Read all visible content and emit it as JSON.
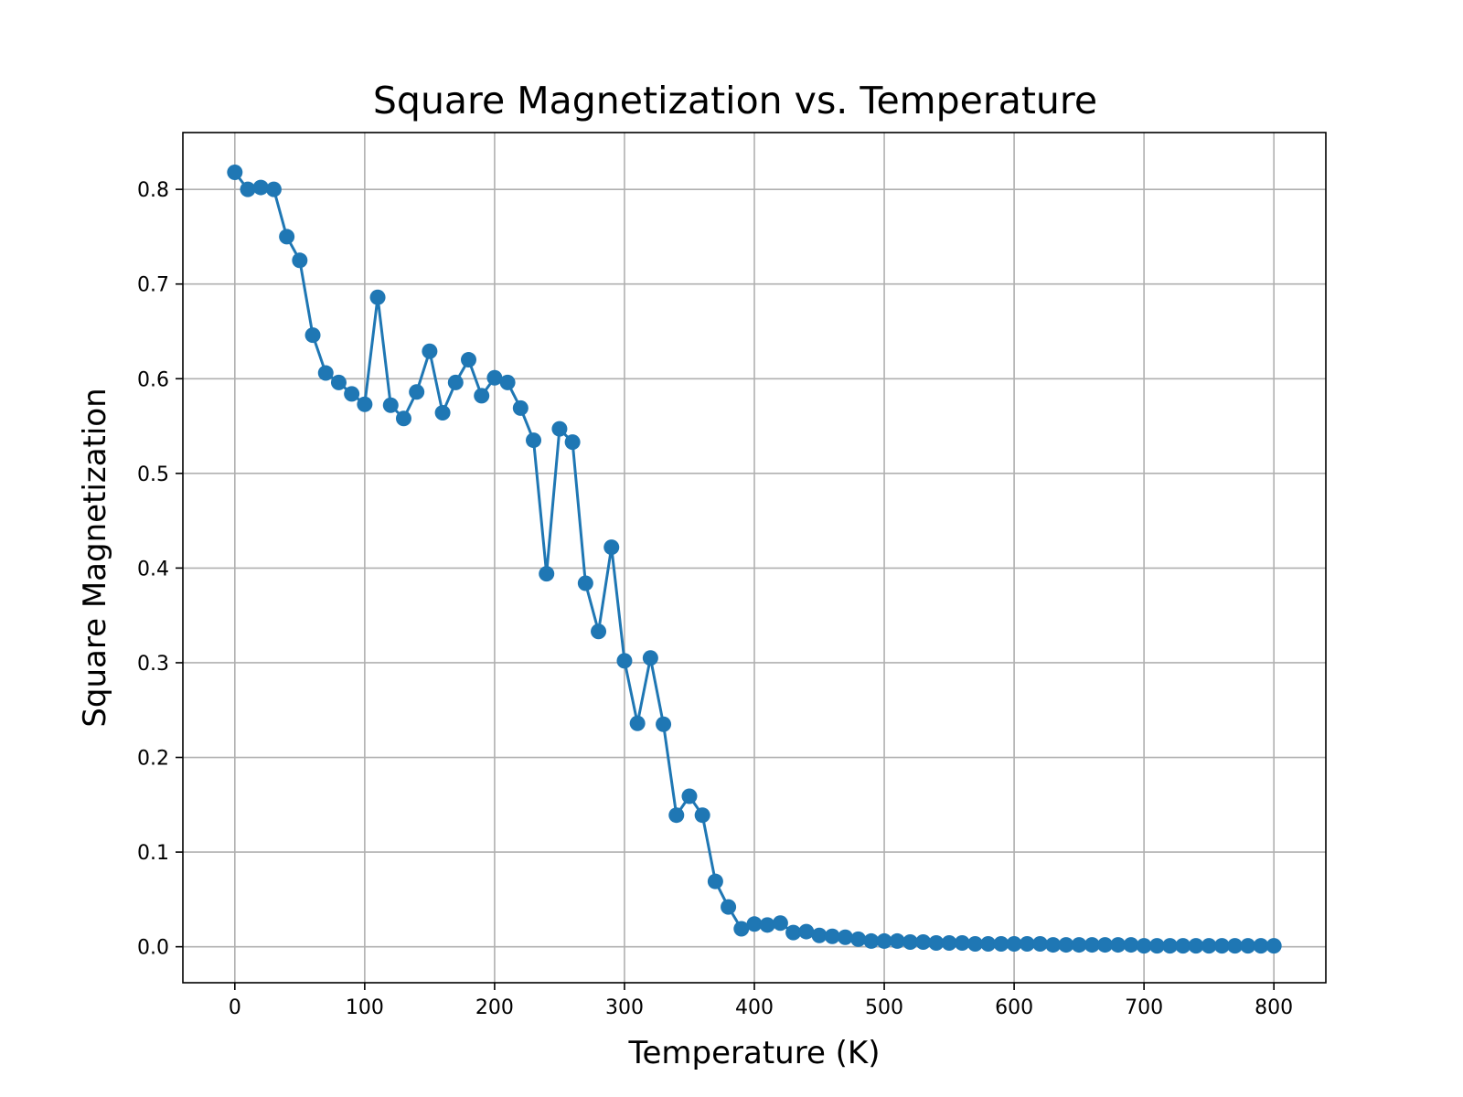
{
  "chart_data": {
    "type": "line",
    "title": "Square Magnetization vs. Temperature",
    "xlabel": "Temperature (K)",
    "ylabel": "Square Magnetization",
    "xlim": [
      -40,
      840
    ],
    "ylim": [
      -0.038,
      0.86
    ],
    "xticks": [
      0,
      100,
      200,
      300,
      400,
      500,
      600,
      700,
      800
    ],
    "yticks": [
      0.0,
      0.1,
      0.2,
      0.3,
      0.4,
      0.5,
      0.6,
      0.7,
      0.8
    ],
    "xtick_labels": [
      "0",
      "100",
      "200",
      "300",
      "400",
      "500",
      "600",
      "700",
      "800"
    ],
    "ytick_labels": [
      "0.0",
      "0.1",
      "0.2",
      "0.3",
      "0.4",
      "0.5",
      "0.6",
      "0.7",
      "0.8"
    ],
    "grid": true,
    "markers": true,
    "color": "#1f77b4",
    "series": [
      {
        "x": [
          0,
          10,
          20,
          30,
          40,
          50,
          60,
          70,
          80,
          90,
          100,
          110,
          120,
          130,
          140,
          150,
          160,
          170,
          180,
          190,
          200,
          210,
          220,
          230,
          240,
          250,
          260,
          270,
          280,
          290,
          300,
          310,
          320,
          330,
          340,
          350,
          360,
          370,
          380,
          390,
          400,
          410,
          420,
          430,
          440,
          450,
          460,
          470,
          480,
          490,
          500,
          510,
          520,
          530,
          540,
          550,
          560,
          570,
          580,
          590,
          600,
          610,
          620,
          630,
          640,
          650,
          660,
          670,
          680,
          690,
          700,
          710,
          720,
          730,
          740,
          750,
          760,
          770,
          780,
          790,
          800
        ],
        "y": [
          0.818,
          0.8,
          0.802,
          0.8,
          0.75,
          0.725,
          0.646,
          0.606,
          0.596,
          0.584,
          0.573,
          0.686,
          0.572,
          0.558,
          0.586,
          0.629,
          0.564,
          0.596,
          0.62,
          0.582,
          0.601,
          0.596,
          0.569,
          0.535,
          0.394,
          0.547,
          0.533,
          0.384,
          0.333,
          0.422,
          0.302,
          0.236,
          0.305,
          0.235,
          0.139,
          0.159,
          0.139,
          0.069,
          0.042,
          0.019,
          0.024,
          0.023,
          0.025,
          0.015,
          0.016,
          0.012,
          0.011,
          0.01,
          0.008,
          0.006,
          0.006,
          0.006,
          0.005,
          0.005,
          0.004,
          0.004,
          0.004,
          0.003,
          0.003,
          0.003,
          0.003,
          0.003,
          0.003,
          0.002,
          0.002,
          0.002,
          0.002,
          0.002,
          0.002,
          0.002,
          0.001,
          0.001,
          0.001,
          0.001,
          0.001,
          0.001,
          0.001,
          0.001,
          0.001,
          0.001,
          0.001
        ]
      }
    ]
  }
}
